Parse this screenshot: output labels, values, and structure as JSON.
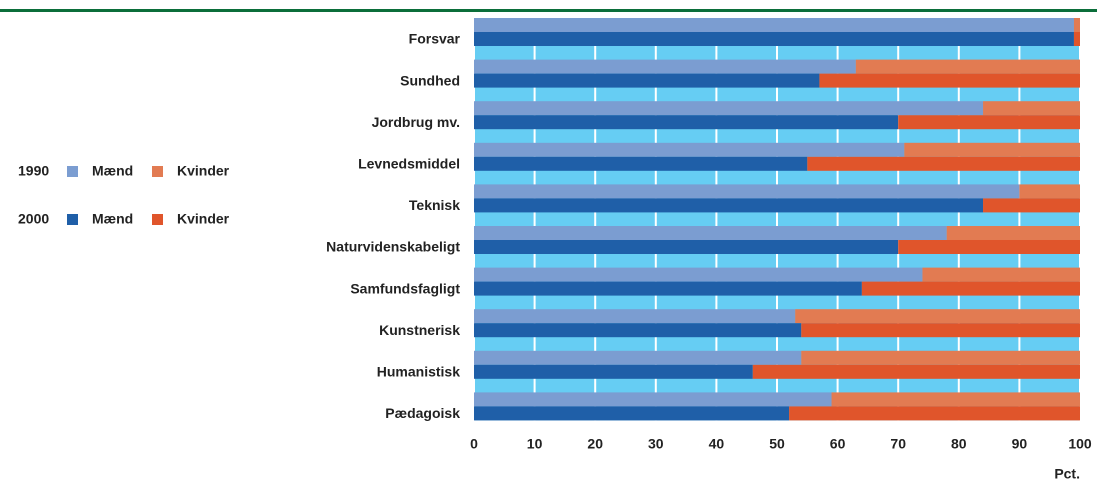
{
  "chart_data": {
    "type": "stacked-bar-horizontal",
    "categories": [
      "Forsvar",
      "Sundhed",
      "Jordbrug mv.",
      "Levnedsmiddel",
      "Teknisk",
      "Naturvidenskabeligt",
      "Samfundsfagligt",
      "Kunstnerisk",
      "Humanistisk",
      "Pædagoisk"
    ],
    "groups": [
      {
        "label": "1990",
        "series": [
          {
            "name": "Mænd",
            "color": "#7b9dd1",
            "values": [
              99,
              63,
              84,
              71,
              90,
              78,
              74,
              53,
              54,
              59
            ]
          },
          {
            "name": "Kvinder",
            "color": "#e27b52",
            "values": [
              1,
              37,
              16,
              29,
              10,
              22,
              26,
              47,
              46,
              41
            ]
          }
        ]
      },
      {
        "label": "2000",
        "series": [
          {
            "name": "Mænd",
            "color": "#1f5fa8",
            "values": [
              99,
              57,
              70,
              55,
              84,
              70,
              64,
              54,
              46,
              52
            ]
          },
          {
            "name": "Kvinder",
            "color": "#e0552b",
            "values": [
              1,
              43,
              30,
              45,
              16,
              30,
              36,
              46,
              54,
              48
            ]
          }
        ]
      }
    ],
    "xlim": [
      0,
      100
    ],
    "xticks": [
      0,
      10,
      20,
      30,
      40,
      50,
      60,
      70,
      80,
      90,
      100
    ],
    "x_label": "Pct.",
    "grid": true,
    "background": "#66cdf3"
  }
}
